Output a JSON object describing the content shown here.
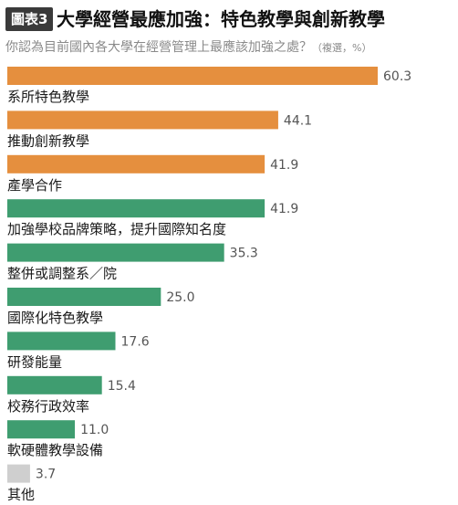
{
  "figure": {
    "badge": "圖表3",
    "title": "大學經營最應加強：特色教學與創新教學",
    "subtitle": "你認為目前國內各大學在經營管理上最應該加強之處？",
    "subtitle_note": "（複選，%）"
  },
  "chart_data": {
    "type": "bar",
    "orientation": "horizontal",
    "title": "大學經營最應加強：特色教學與創新教學",
    "subtitle": "你認為目前國內各大學在經營管理上最應該加強之處？（複選，%）",
    "xlim": [
      0,
      60.3
    ],
    "grid": false,
    "legend": "none",
    "categories": [
      "系所特色教學",
      "推動創新教學",
      "產學合作",
      "加強學校品牌策略，提升國際知名度",
      "整併或調整系／院",
      "國際化特色教學",
      "研發能量",
      "校務行政效率",
      "軟硬體教學設備",
      "其他"
    ],
    "values": [
      60.3,
      44.1,
      41.9,
      41.9,
      35.3,
      25.0,
      17.6,
      15.4,
      11.0,
      3.7
    ],
    "value_labels": [
      "60.3",
      "44.1",
      "41.9",
      "41.9",
      "35.3",
      "25.0",
      "17.6",
      "15.4",
      "11.0",
      "3.7"
    ],
    "bar_colors": [
      "#e58f3e",
      "#e58f3e",
      "#e58f3e",
      "#3f9d70",
      "#3f9d70",
      "#3f9d70",
      "#3f9d70",
      "#3f9d70",
      "#3f9d70",
      "#cfcfcf"
    ]
  }
}
